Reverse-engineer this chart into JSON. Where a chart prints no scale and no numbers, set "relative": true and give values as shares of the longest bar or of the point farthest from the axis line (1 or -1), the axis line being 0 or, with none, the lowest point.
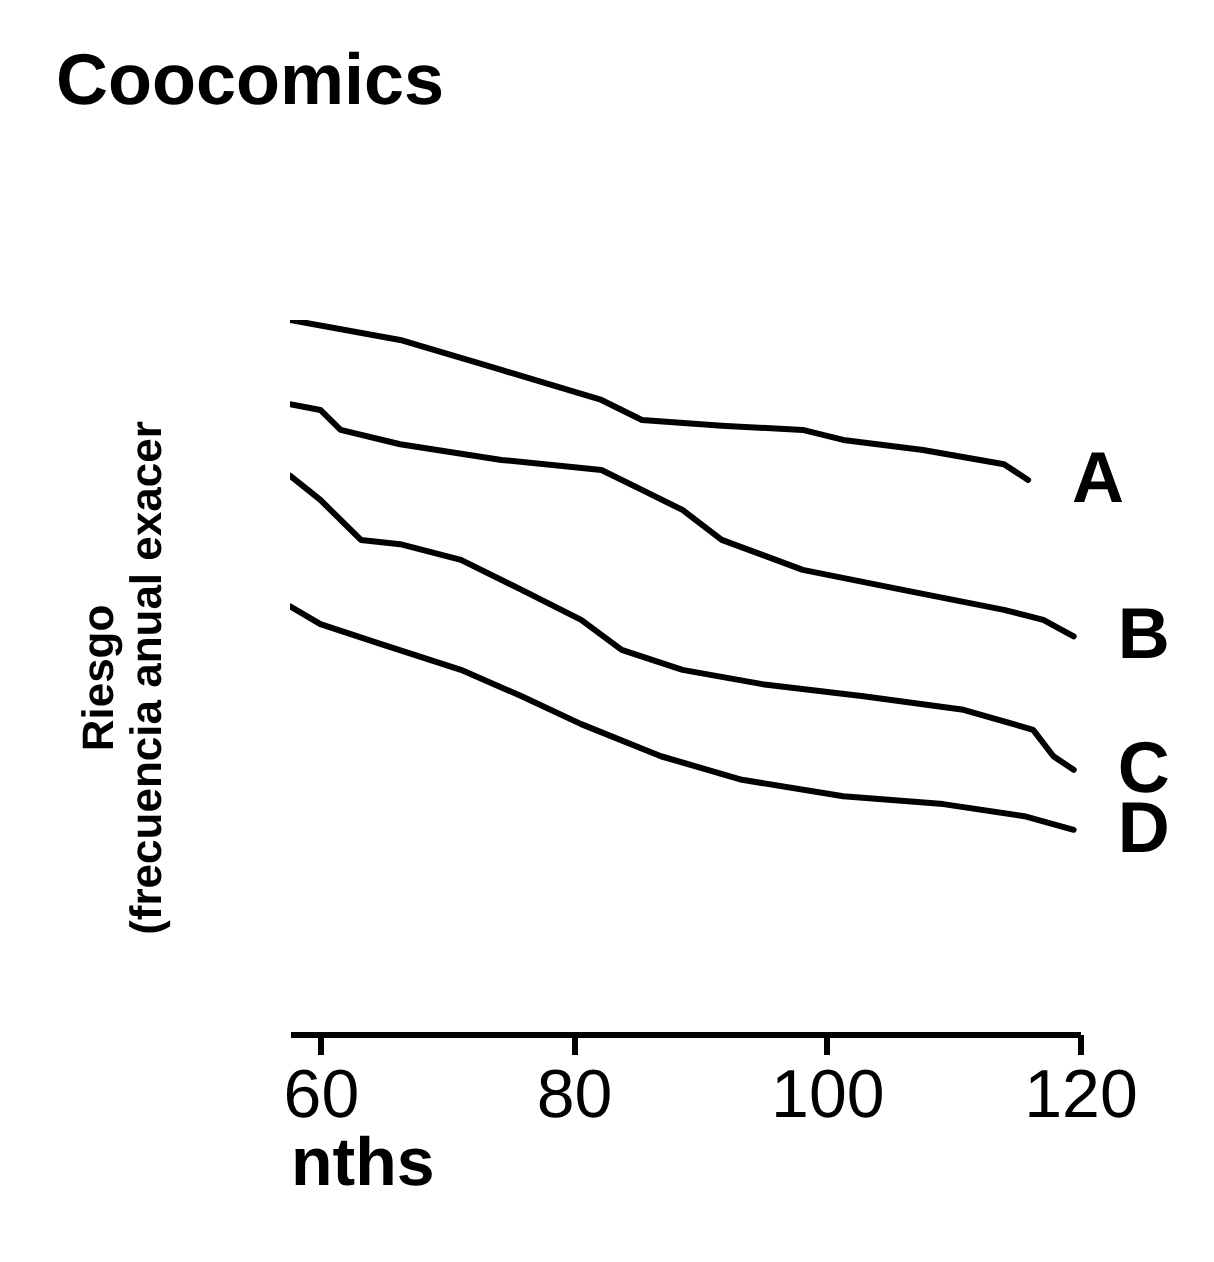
{
  "chart_data": {
    "type": "line",
    "title": "Coocomics",
    "xlabel": "nths",
    "ylabel": "Riesgo\n(frecuencia anual exacer",
    "relative": true,
    "xlim": [
      57.6,
      120
    ],
    "xticks": [
      60,
      80,
      100,
      120
    ],
    "legend": false,
    "grid": false,
    "marker": "none",
    "line_style": "solid",
    "series": [
      {
        "name": "A",
        "color": "#000000",
        "x": [
          57.6,
          66.3,
          74.3,
          82.2,
          85.4,
          91.7,
          98.1,
          101.3,
          107.6,
          114.0,
          115.9
        ],
        "values": [
          1,
          0.972,
          0.93,
          0.888,
          0.86,
          0.852,
          0.846,
          0.832,
          0.818,
          0.798,
          0.776
        ]
      },
      {
        "name": "B",
        "color": "#000000",
        "x": [
          57.6,
          60,
          61.6,
          66.3,
          74.3,
          82.2,
          85.4,
          88.6,
          91.7,
          98.1,
          106.0,
          114.0,
          117.1,
          119.5
        ],
        "values": [
          0.882,
          0.874,
          0.846,
          0.826,
          0.804,
          0.79,
          0.762,
          0.734,
          0.692,
          0.65,
          0.622,
          0.594,
          0.58,
          0.557
        ]
      },
      {
        "name": "C",
        "color": "#000000",
        "x": [
          57.6,
          60,
          63.2,
          66.3,
          71.1,
          75.9,
          80.6,
          83.8,
          88.6,
          94.9,
          102.9,
          110.8,
          116.3,
          117.9,
          119.5
        ],
        "values": [
          0.782,
          0.748,
          0.692,
          0.686,
          0.664,
          0.622,
          0.58,
          0.538,
          0.51,
          0.49,
          0.473,
          0.454,
          0.426,
          0.389,
          0.37
        ]
      },
      {
        "name": "D",
        "color": "#000000",
        "x": [
          57.6,
          60,
          64.8,
          71.1,
          75.9,
          80.6,
          86.9,
          93.3,
          101.3,
          109.2,
          115.6,
          119.5
        ],
        "values": [
          0.599,
          0.574,
          0.546,
          0.51,
          0.473,
          0.434,
          0.389,
          0.356,
          0.333,
          0.322,
          0.305,
          0.286
        ]
      }
    ]
  }
}
